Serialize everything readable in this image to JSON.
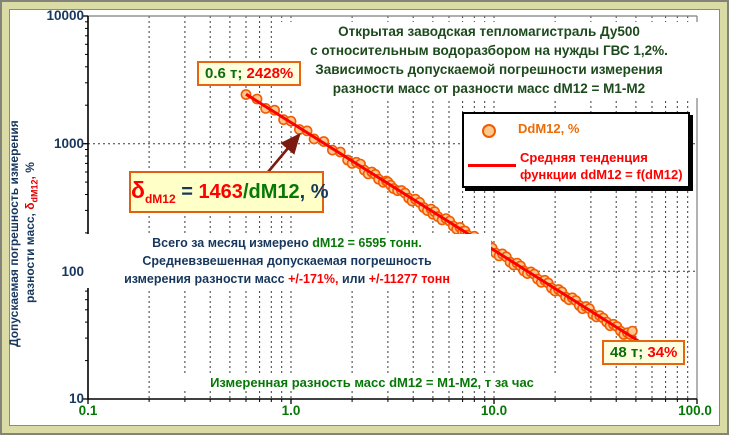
{
  "title": {
    "lines": [
      "Открытая заводская тепломагистраль Ду500",
      "с относительным водоразбором на нужды ГВС 1,2%.",
      "Зависимость допускаемой погрешности измерения",
      "разности масс от разности масс dM12 =  М1-М2"
    ]
  },
  "legend": {
    "series1_label": "DdM12, %",
    "series2_label_line1": "Средняя тенденция",
    "series2_label_line2": "функции ddM12 = f(dM12)"
  },
  "annotations": {
    "start_value": "0.6 т;",
    "start_pct": " 2428%",
    "end_value": "48 т;",
    "end_pct": " 34%",
    "formula_delta": "δ",
    "formula_delta_sub": "dM12",
    "formula_eq": " = ",
    "formula_numerator": "1463",
    "formula_denominator": "/dM12",
    "formula_tail": ", %"
  },
  "summary": {
    "line1_blue": "Всего за месяц измерено ",
    "line1_green": "dM12 = 6595 тонн.",
    "line2_blue": "Средневзвешенная допускаемая погрешность",
    "line3_blue": "измерения разности масс ",
    "line3_red1": "+/-171%,",
    "line3_blue2": " или ",
    "line3_red2": "+/-11277 тонн"
  },
  "x_axis": {
    "label": "Измеренная разность масс dM12 = М1-М2, т за час",
    "ticks": [
      "0.1",
      "1.0",
      "10.0",
      "100.0"
    ]
  },
  "y_axis": {
    "label_line1": "Допускаемая погрешность измерения",
    "label_line2_prefix": "разности масс, ",
    "label_line2_delta": "δ",
    "label_line2_delta_sub": "dM12",
    "label_line2_comma": ",",
    "label_line2_suffix": " %",
    "ticks": [
      "10",
      "100",
      "1000",
      "10000"
    ]
  },
  "colors": {
    "navy": "#17375d",
    "title_green": "#1d4a1d",
    "green": "#067806",
    "red": "#ff0000",
    "orange_legend": "#ed6c05",
    "marker_fill": "#fbc88d",
    "marker_stroke": "#f25b02",
    "trend_line": "#ff0000",
    "grid": "#3a3a3a",
    "frame_band": "#dbdba6",
    "frame_border": "#83837a",
    "callout_border": "#e8650f",
    "callout_bg": "#ffffe0",
    "formula_bg": "#ffffc8",
    "arrow": "#7c1a10"
  },
  "chart_data": {
    "type": "scatter",
    "title": "Зависимость допускаемой погрешности измерения разности масс от разности масс dM12 = М1-М2 (тепломагистраль Ду500, водоразбор ГВС 1,2%)",
    "xlabel": "Измеренная разность масс dM12 = М1-М2, т за час",
    "ylabel": "Допускаемая погрешность измерения разности масс, δdM12, %",
    "xscale": "log",
    "yscale": "log",
    "xlim": [
      0.1,
      100
    ],
    "ylim": [
      10,
      10000
    ],
    "grid": "dashed; vertical at log minors and majors, horizontal at 100 and 1000",
    "legend_position": "upper right",
    "series": [
      {
        "name": "DdM12, %",
        "type": "scatter",
        "points": [
          [
            0.6,
            2428
          ],
          [
            0.68,
            2240
          ],
          [
            0.75,
            1890
          ],
          [
            0.83,
            1830
          ],
          [
            0.92,
            1540
          ],
          [
            1.0,
            1500
          ],
          [
            1.1,
            1290
          ],
          [
            1.2,
            1260
          ],
          [
            1.3,
            1090
          ],
          [
            1.45,
            1040
          ],
          [
            1.6,
            890
          ],
          [
            1.75,
            860
          ],
          [
            1.9,
            745
          ],
          [
            2.0,
            700
          ],
          [
            2.1,
            715
          ],
          [
            2.2,
            692
          ],
          [
            2.3,
            620
          ],
          [
            2.4,
            580
          ],
          [
            2.5,
            600
          ],
          [
            2.6,
            574
          ],
          [
            2.7,
            527
          ],
          [
            2.85,
            498
          ],
          [
            2.95,
            510
          ],
          [
            3.0,
            500
          ],
          [
            3.1,
            472
          ],
          [
            3.2,
            445
          ],
          [
            3.35,
            428
          ],
          [
            3.5,
            430
          ],
          [
            3.65,
            409
          ],
          [
            3.8,
            374
          ],
          [
            3.95,
            355
          ],
          [
            4.1,
            367
          ],
          [
            4.3,
            347
          ],
          [
            4.5,
            316
          ],
          [
            4.7,
            299
          ],
          [
            4.9,
            307
          ],
          [
            5.0,
            280
          ],
          [
            5.1,
            293
          ],
          [
            5.3,
            268
          ],
          [
            5.55,
            253
          ],
          [
            5.8,
            259
          ],
          [
            6.05,
            247
          ],
          [
            6.3,
            226
          ],
          [
            6.55,
            214
          ],
          [
            6.8,
            221
          ],
          [
            7.0,
            205
          ],
          [
            7.2,
            207
          ],
          [
            7.4,
            192
          ],
          [
            7.7,
            182
          ],
          [
            8.0,
            188
          ],
          [
            8.35,
            179
          ],
          [
            8.7,
            163
          ],
          [
            9.0,
            170
          ],
          [
            9.05,
            155
          ],
          [
            9.4,
            160
          ],
          [
            9.8,
            152
          ],
          [
            10.2,
            139
          ],
          [
            10.6,
            132
          ],
          [
            11.0,
            137
          ],
          [
            11.5,
            130
          ],
          [
            12.0,
            118
          ],
          [
            12.5,
            112
          ],
          [
            13.0,
            116
          ],
          [
            13.5,
            110
          ],
          [
            14.0,
            101
          ],
          [
            14.6,
            96
          ],
          [
            15.2,
            99
          ],
          [
            15.8,
            95
          ],
          [
            16.4,
            87
          ],
          [
            17.1,
            82
          ],
          [
            17.8,
            85
          ],
          [
            18.5,
            81
          ],
          [
            19.2,
            74
          ],
          [
            20.0,
            70
          ],
          [
            20.8,
            72
          ],
          [
            21.6,
            69
          ],
          [
            22.5,
            63
          ],
          [
            23.4,
            60
          ],
          [
            24.3,
            62
          ],
          [
            25.3,
            59
          ],
          [
            26.3,
            54
          ],
          [
            27.3,
            51
          ],
          [
            28.4,
            53
          ],
          [
            29.5,
            51
          ],
          [
            30.7,
            46
          ],
          [
            32.0,
            44
          ],
          [
            33.2,
            45
          ],
          [
            34.5,
            43
          ],
          [
            35.9,
            40
          ],
          [
            37.3,
            37.5
          ],
          [
            38.8,
            38.5
          ],
          [
            40.3,
            37
          ],
          [
            42.0,
            34
          ],
          [
            43.6,
            32
          ],
          [
            45.4,
            33
          ],
          [
            47.0,
            32
          ],
          [
            48.0,
            34
          ]
        ]
      },
      {
        "name": "Средняя тенденция функции ddM12 = f(dM12)",
        "type": "line",
        "formula": "ddM12 = 1463/dM12, %",
        "coefficient": 1463,
        "x_range": [
          0.6,
          52
        ]
      }
    ],
    "callouts": [
      {
        "x": 0.6,
        "y_pct": 2428,
        "label": "0.6 т; 2428%"
      },
      {
        "x": 48,
        "y_pct": 34,
        "label": "48 т; 34%"
      }
    ],
    "totals": {
      "measured_dM12_tons": 6595,
      "weighted_error_pct": 171,
      "weighted_error_tons": 11277
    }
  }
}
